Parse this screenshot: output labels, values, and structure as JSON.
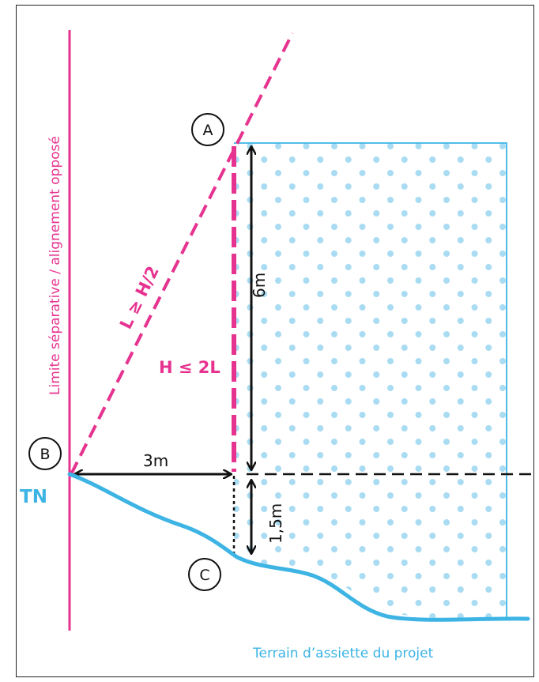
{
  "colors": {
    "magenta": "#e6338f",
    "cyan": "#3db4e4",
    "black": "#111111",
    "dot": "#a9dcf2"
  },
  "labels": {
    "limit_line": "Limite séparative / alignement opposé",
    "point_a": "A",
    "point_b": "B",
    "point_c": "C",
    "rule_l": "L ≥ H/2",
    "rule_h": "H ≤ 2L",
    "dim_height": "6m",
    "dim_horizontal": "3m",
    "dim_offset": "1,5m",
    "ground_natural": "TN",
    "terrain": "Terrain d’assiette du projet"
  }
}
